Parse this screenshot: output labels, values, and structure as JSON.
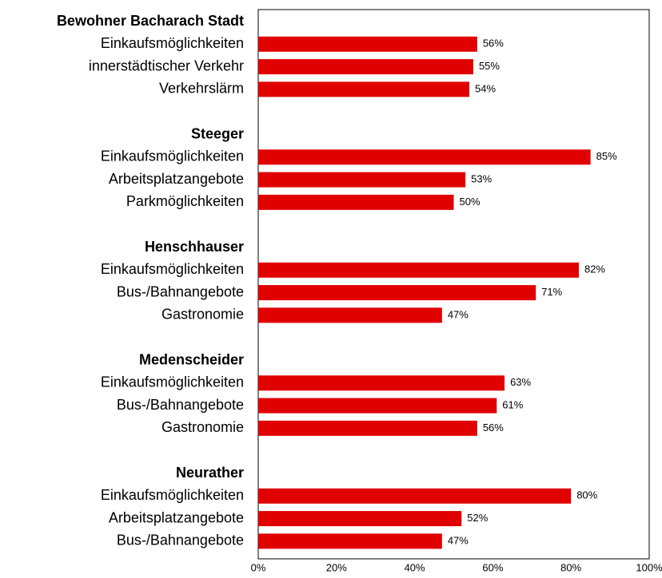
{
  "chart_data": {
    "type": "bar",
    "orientation": "horizontal",
    "color": "#e00000",
    "groups": [
      {
        "name": "Bewohner Bacharach Stadt",
        "categories": [
          "Einkaufsmöglichkeiten",
          "innerstädtischer Verkehr",
          "Verkehrslärm"
        ],
        "values": [
          56,
          55,
          54
        ],
        "value_labels": [
          "56%",
          "55%",
          "54%"
        ]
      },
      {
        "name": "Steeger",
        "categories": [
          "Einkaufsmöglichkeiten",
          "Arbeitsplatzangebote",
          "Parkmöglichkeiten"
        ],
        "values": [
          85,
          53,
          50
        ],
        "value_labels": [
          "85%",
          "53%",
          "50%"
        ]
      },
      {
        "name": "Henschhauser",
        "categories": [
          "Einkaufsmöglichkeiten",
          "Bus-/Bahnangebote",
          "Gastronomie"
        ],
        "values": [
          82,
          71,
          47
        ],
        "value_labels": [
          "82%",
          "71%",
          "47%"
        ]
      },
      {
        "name": "Medenscheider",
        "categories": [
          "Einkaufsmöglichkeiten",
          "Bus-/Bahnangebote",
          "Gastronomie"
        ],
        "values": [
          63,
          61,
          56
        ],
        "value_labels": [
          "63%",
          "61%",
          "56%"
        ]
      },
      {
        "name": "Neurather",
        "categories": [
          "Einkaufsmöglichkeiten",
          "Arbeitsplatzangebote",
          "Bus-/Bahnangebote"
        ],
        "values": [
          80,
          52,
          47
        ],
        "value_labels": [
          "80%",
          "52%",
          "47%"
        ]
      }
    ],
    "xlim": [
      0,
      100
    ],
    "xticks": [
      {
        "value": 0,
        "label": "0%"
      },
      {
        "value": 20,
        "label": "20%"
      },
      {
        "value": 40,
        "label": "40%"
      },
      {
        "value": 60,
        "label": "60%"
      },
      {
        "value": 80,
        "label": "80%"
      },
      {
        "value": 100,
        "label": "100%"
      }
    ]
  }
}
